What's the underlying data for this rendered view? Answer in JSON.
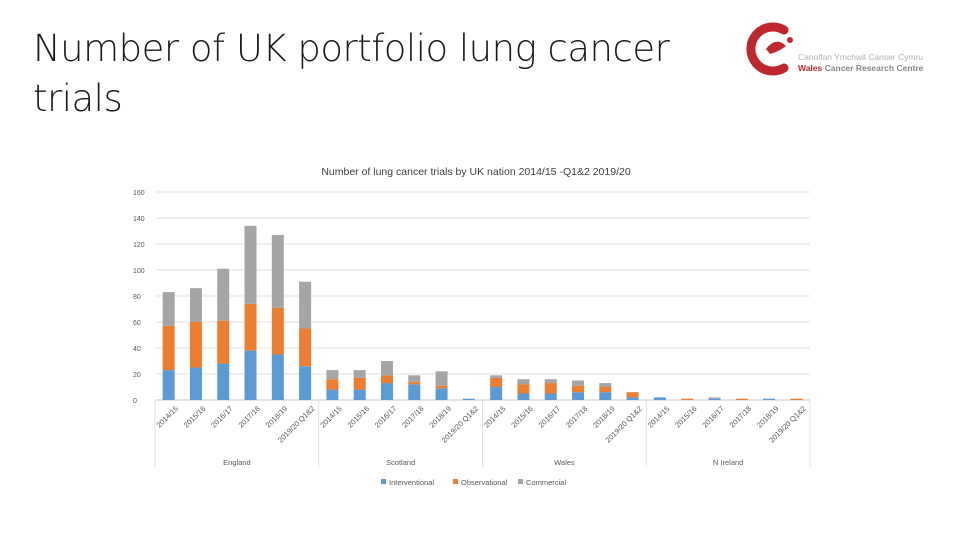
{
  "slide": {
    "title": "Number of UK portfolio lung cancer trials"
  },
  "logo": {
    "name": "wales-cancer-research-centre-logo",
    "line1": "Canolfan Ymchwil Canser Cymru",
    "line2_part1": "Wales",
    "line2_part2": "Cancer Research Centre",
    "color": "#c0272d"
  },
  "chart_data": {
    "type": "bar",
    "stacked": true,
    "title": "Number of lung cancer trials by UK nation 2014/15 -Q1&2 2019/20",
    "xlabel": "",
    "ylabel": "",
    "ylim": [
      0,
      160
    ],
    "yticks": [
      0,
      20,
      40,
      60,
      80,
      100,
      120,
      140,
      160
    ],
    "grid": true,
    "legend_position": "bottom",
    "groups": [
      "England",
      "Scotland",
      "Wales",
      "N Ireland"
    ],
    "categories": [
      "2014/15",
      "2015/16",
      "2016/17",
      "2017/18",
      "2018/19",
      "2019/20 Q1&2"
    ],
    "colors": {
      "Interventional": "#5b9bd5",
      "Observational": "#ed7d31",
      "Commercial": "#a5a5a5"
    },
    "series": [
      {
        "name": "Interventional",
        "values": [
          [
            23,
            25,
            28,
            38,
            35,
            26
          ],
          [
            8,
            8,
            13,
            12,
            9,
            1
          ],
          [
            10,
            5,
            5,
            6,
            6,
            2
          ],
          [
            2,
            0,
            1,
            0,
            1,
            0
          ]
        ]
      },
      {
        "name": "Observational",
        "values": [
          [
            34,
            35,
            33,
            36,
            36,
            29
          ],
          [
            8,
            9,
            6,
            2,
            2,
            0
          ],
          [
            7,
            7,
            8,
            5,
            4,
            4
          ],
          [
            0,
            1,
            0,
            1,
            0,
            1
          ]
        ]
      },
      {
        "name": "Commercial",
        "values": [
          [
            26,
            26,
            40,
            60,
            56,
            36
          ],
          [
            7,
            6,
            11,
            5,
            11,
            0
          ],
          [
            2,
            4,
            3,
            4,
            3,
            0
          ],
          [
            0,
            0,
            1,
            0,
            0,
            0
          ]
        ]
      }
    ]
  }
}
